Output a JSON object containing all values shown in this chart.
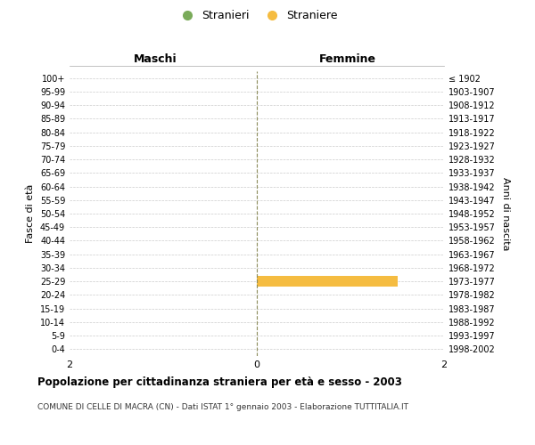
{
  "age_groups": [
    "100+",
    "95-99",
    "90-94",
    "85-89",
    "80-84",
    "75-79",
    "70-74",
    "65-69",
    "60-64",
    "55-59",
    "50-54",
    "45-49",
    "40-44",
    "35-39",
    "30-34",
    "25-29",
    "20-24",
    "15-19",
    "10-14",
    "5-9",
    "0-4"
  ],
  "birth_years": [
    "≤ 1902",
    "1903-1907",
    "1908-1912",
    "1913-1917",
    "1918-1922",
    "1923-1927",
    "1928-1932",
    "1933-1937",
    "1938-1942",
    "1943-1947",
    "1948-1952",
    "1953-1957",
    "1958-1962",
    "1963-1967",
    "1968-1972",
    "1973-1977",
    "1978-1982",
    "1983-1987",
    "1988-1992",
    "1993-1997",
    "1998-2002"
  ],
  "maschi_values": [
    0,
    0,
    0,
    0,
    0,
    0,
    0,
    0,
    0,
    0,
    0,
    0,
    0,
    0,
    0,
    0,
    0,
    0,
    0,
    0,
    0
  ],
  "femmine_values": [
    0,
    0,
    0,
    0,
    0,
    0,
    0,
    0,
    0,
    0,
    0,
    0,
    0,
    0,
    0,
    1.5,
    0,
    0,
    0,
    0,
    0
  ],
  "maschi_color": "#7aab5a",
  "femmine_color": "#f5bc41",
  "center_line_color": "#8b8b5a",
  "grid_color": "#cccccc",
  "xlim": [
    -2,
    2
  ],
  "ylabel_left": "Fasce di età",
  "ylabel_right": "Anni di nascita",
  "title_maschi": "Maschi",
  "title_femmine": "Femmine",
  "legend_maschi": "Stranieri",
  "legend_femmine": "Straniere",
  "main_title": "Popolazione per cittadinanza straniera per età e sesso - 2003",
  "sub_title": "COMUNE DI CELLE DI MACRA (CN) - Dati ISTAT 1° gennaio 2003 - Elaborazione TUTTITALIA.IT",
  "background_color": "#ffffff",
  "bar_height": 0.75
}
